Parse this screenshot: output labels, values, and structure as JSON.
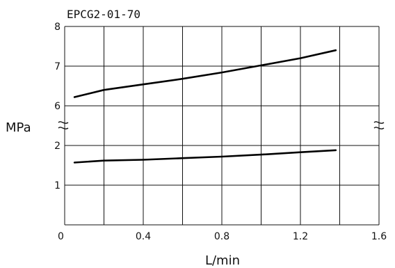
{
  "chart_data": {
    "type": "line",
    "title": "EPCG2-01-70",
    "xlabel": "L/min",
    "ylabel": "MPa",
    "xlim": [
      0,
      1.6
    ],
    "x_ticks": [
      0,
      0.2,
      0.4,
      0.6,
      0.8,
      1.0,
      1.2,
      1.4,
      1.6
    ],
    "x_tick_labels": [
      {
        "value": 0,
        "label": "0"
      },
      {
        "value": 0.4,
        "label": "0.4"
      },
      {
        "value": 0.8,
        "label": "0.8"
      },
      {
        "value": 1.2,
        "label": "1.2"
      },
      {
        "value": 1.6,
        "label": "1.6"
      }
    ],
    "y_axis_broken": true,
    "y_lower_range": [
      0,
      2
    ],
    "y_upper_range": [
      6,
      8
    ],
    "y_tick_labels": [
      "1",
      "2",
      "6",
      "7",
      "8"
    ],
    "grid": true,
    "series": [
      {
        "segment": "upper",
        "x": [
          0.05,
          0.2,
          0.4,
          0.6,
          0.8,
          1.0,
          1.2,
          1.38
        ],
        "y": [
          6.22,
          6.4,
          6.54,
          6.68,
          6.84,
          7.02,
          7.2,
          7.4
        ]
      },
      {
        "segment": "lower",
        "x": [
          0.05,
          0.2,
          0.4,
          0.6,
          0.8,
          1.0,
          1.2,
          1.38
        ],
        "y": [
          1.57,
          1.62,
          1.64,
          1.68,
          1.72,
          1.77,
          1.83,
          1.88
        ]
      }
    ]
  }
}
